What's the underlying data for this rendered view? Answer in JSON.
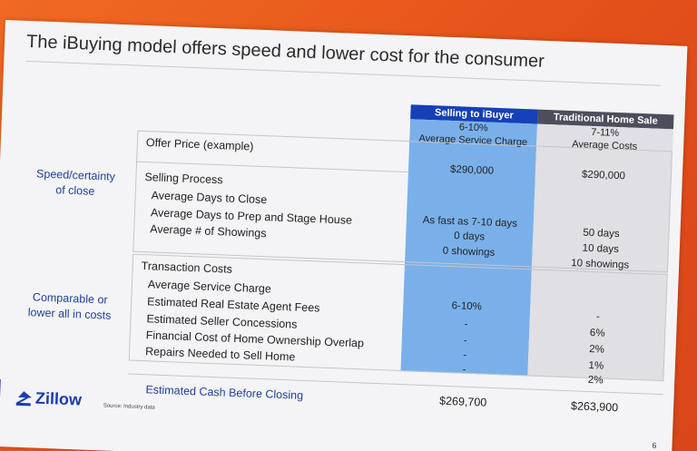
{
  "slide": {
    "title": "The iBuying model offers speed and lower cost for the consumer",
    "side_labels": {
      "speed": "Speed/certainty of close",
      "cost": "Comparable or lower all in costs"
    },
    "columns": {
      "ibuyer": {
        "header": "Selling to iBuyer",
        "sub1": "6-10%",
        "sub2": "Average Service Charge"
      },
      "traditional": {
        "header": "Traditional Home Sale",
        "sub1": "7-11%",
        "sub2": "Average Costs"
      }
    },
    "offer_price": {
      "label": "Offer Price (example)",
      "ibuyer": "$290,000",
      "traditional": "$290,000"
    },
    "selling_process": {
      "label": "Selling Process",
      "rows": [
        {
          "label": "Average Days to Close",
          "ibuyer": "As fast as 7-10 days",
          "traditional": "50 days"
        },
        {
          "label": "Average Days to Prep and Stage House",
          "ibuyer": "0 days",
          "traditional": "10 days"
        },
        {
          "label": "Average # of Showings",
          "ibuyer": "0 showings",
          "traditional": "10 showings"
        }
      ]
    },
    "transaction_costs": {
      "label": "Transaction Costs",
      "rows": [
        {
          "label": "Average Service Charge",
          "ibuyer": "6-10%",
          "traditional": "-"
        },
        {
          "label": "Estimated Real Estate Agent Fees",
          "ibuyer": "-",
          "traditional": "6%"
        },
        {
          "label": "Estimated Seller Concessions",
          "ibuyer": "-",
          "traditional": "2%"
        },
        {
          "label": "Financial Cost of Home Ownership Overlap",
          "ibuyer": "-",
          "traditional": "1%"
        },
        {
          "label": "Repairs Needed to Sell Home",
          "ibuyer": "-",
          "traditional": "2%"
        }
      ]
    },
    "cash_before_closing": {
      "label": "Estimated Cash Before Closing",
      "ibuyer": "$269,700",
      "traditional": "$263,900"
    },
    "footer": {
      "logo_text": "Zillow",
      "source": "Source: Industry data",
      "page_number": "6"
    },
    "colors": {
      "accent_blue": "#1640b8",
      "ibuyer_column": "#7ab0ea",
      "traditional_column": "#dfdfe4",
      "background_orange": "#e8511a"
    }
  }
}
